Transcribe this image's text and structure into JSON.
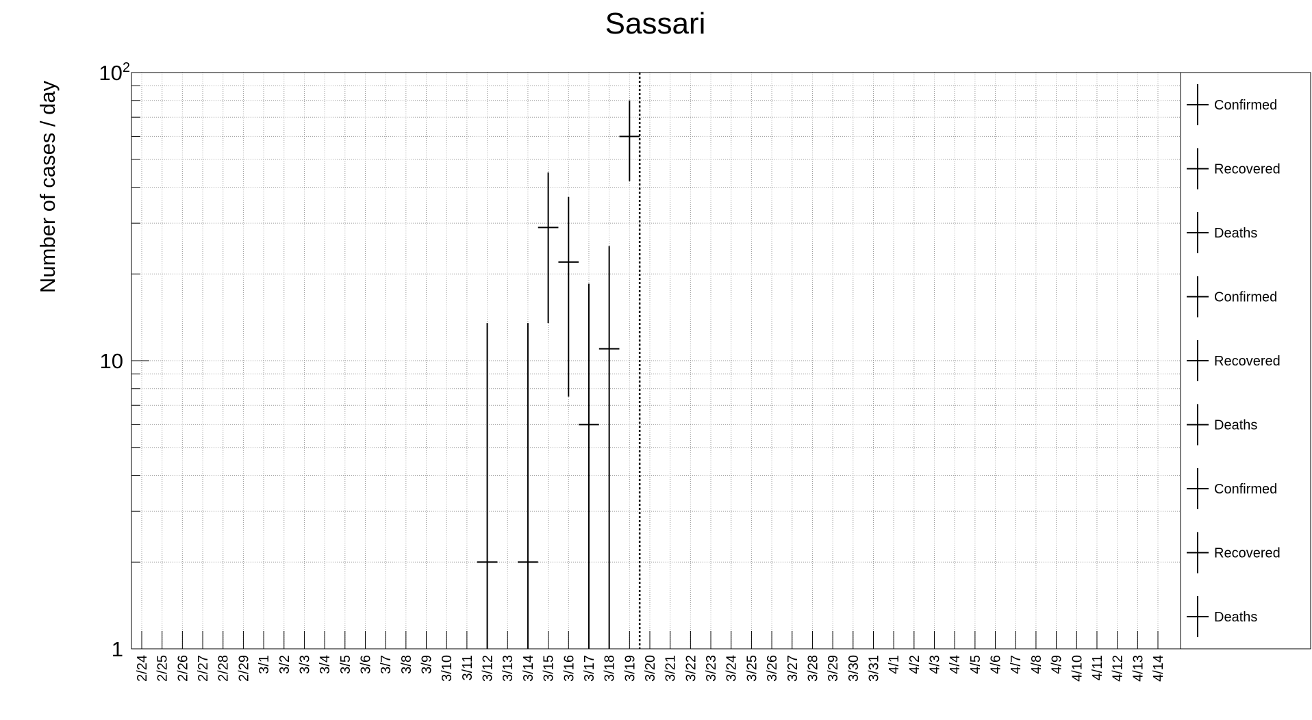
{
  "chart_data": {
    "type": "scatter",
    "title": "Sassari",
    "ylabel": "Number of cases / day",
    "xlabel": "",
    "y_scale": "log",
    "ylim": [
      1,
      100
    ],
    "y_tick_labels": [
      {
        "value": 1,
        "label": "1"
      },
      {
        "value": 10,
        "label": "10"
      },
      {
        "value": 100,
        "label": "10",
        "sup": "2"
      }
    ],
    "grid": true,
    "categories": [
      "2/24",
      "2/25",
      "2/26",
      "2/27",
      "2/28",
      "2/29",
      "3/1",
      "3/2",
      "3/3",
      "3/4",
      "3/5",
      "3/6",
      "3/7",
      "3/8",
      "3/9",
      "3/10",
      "3/11",
      "3/12",
      "3/13",
      "3/14",
      "3/15",
      "3/16",
      "3/17",
      "3/18",
      "3/19",
      "3/20",
      "3/21",
      "3/22",
      "3/23",
      "3/24",
      "3/25",
      "3/26",
      "3/27",
      "3/28",
      "3/29",
      "3/30",
      "3/31",
      "4/1",
      "4/2",
      "4/3",
      "4/4",
      "4/5",
      "4/6",
      "4/7",
      "4/8",
      "4/9",
      "4/10",
      "4/11",
      "4/12",
      "4/13",
      "4/14"
    ],
    "marker_date": "3/19",
    "legend_position": "right",
    "legend": [
      "Confirmed",
      "Recovered",
      "Deaths",
      "Confirmed",
      "Recovered",
      "Deaths",
      "Confirmed",
      "Recovered",
      "Deaths"
    ],
    "series": [
      {
        "name": "Confirmed",
        "points": [
          {
            "x": "3/12",
            "y": 2,
            "ylow": 1,
            "yhigh": 13.5
          },
          {
            "x": "3/14",
            "y": 2,
            "ylow": 1,
            "yhigh": 13.5
          },
          {
            "x": "3/15",
            "y": 29,
            "ylow": 13.5,
            "yhigh": 45
          },
          {
            "x": "3/16",
            "y": 22,
            "ylow": 7.5,
            "yhigh": 37
          },
          {
            "x": "3/17",
            "y": 6,
            "ylow": 1,
            "yhigh": 18.5
          },
          {
            "x": "3/18",
            "y": 11,
            "ylow": 1,
            "yhigh": 25
          },
          {
            "x": "3/19",
            "y": 60,
            "ylow": 42,
            "yhigh": 80
          }
        ]
      }
    ]
  }
}
